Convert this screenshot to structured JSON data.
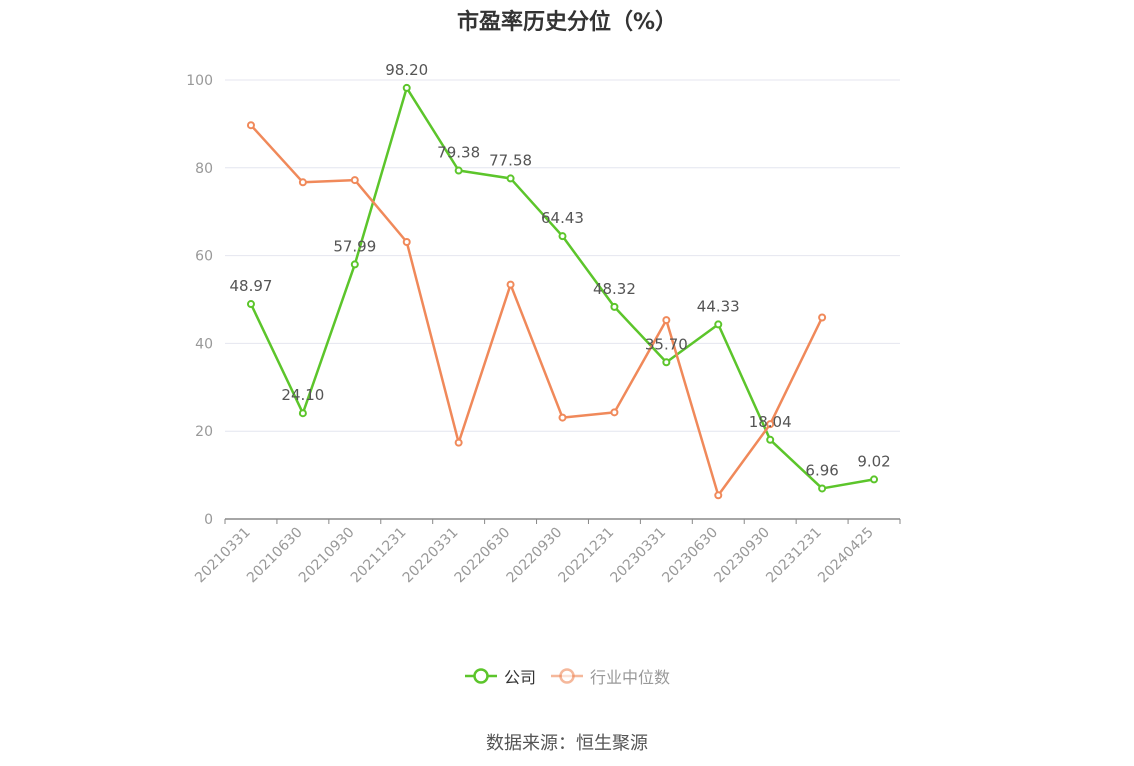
{
  "chart_data": {
    "type": "line",
    "title": "市盈率历史分位（%）",
    "categories": [
      "20210331",
      "20210630",
      "20210930",
      "20211231",
      "20220331",
      "20220630",
      "20220930",
      "20221231",
      "20230331",
      "20230630",
      "20230930",
      "20231231",
      "20240425"
    ],
    "ylim": [
      0,
      100
    ],
    "yticks": [
      0,
      20,
      40,
      60,
      80,
      100
    ],
    "grid": true,
    "legend_position": "bottom",
    "series": [
      {
        "name": "公司",
        "color": "#5cc52b",
        "values": [
          48.97,
          24.1,
          57.99,
          98.2,
          79.38,
          77.58,
          64.43,
          48.32,
          35.7,
          44.33,
          18.04,
          6.96,
          9.02
        ],
        "labels": [
          "48.97",
          "24.10",
          "57.99",
          "98.20",
          "79.38",
          "77.58",
          "64.43",
          "48.32",
          "35.70",
          "44.33",
          "18.04",
          "6.96",
          "9.02"
        ]
      },
      {
        "name": "行业中位数",
        "color": "#f0895a",
        "values": [
          89.7,
          76.7,
          77.2,
          63.1,
          17.4,
          53.4,
          23.1,
          24.3,
          45.3,
          5.4,
          21.6,
          45.9,
          null
        ]
      }
    ]
  },
  "source_text": "数据来源：恒生聚源"
}
